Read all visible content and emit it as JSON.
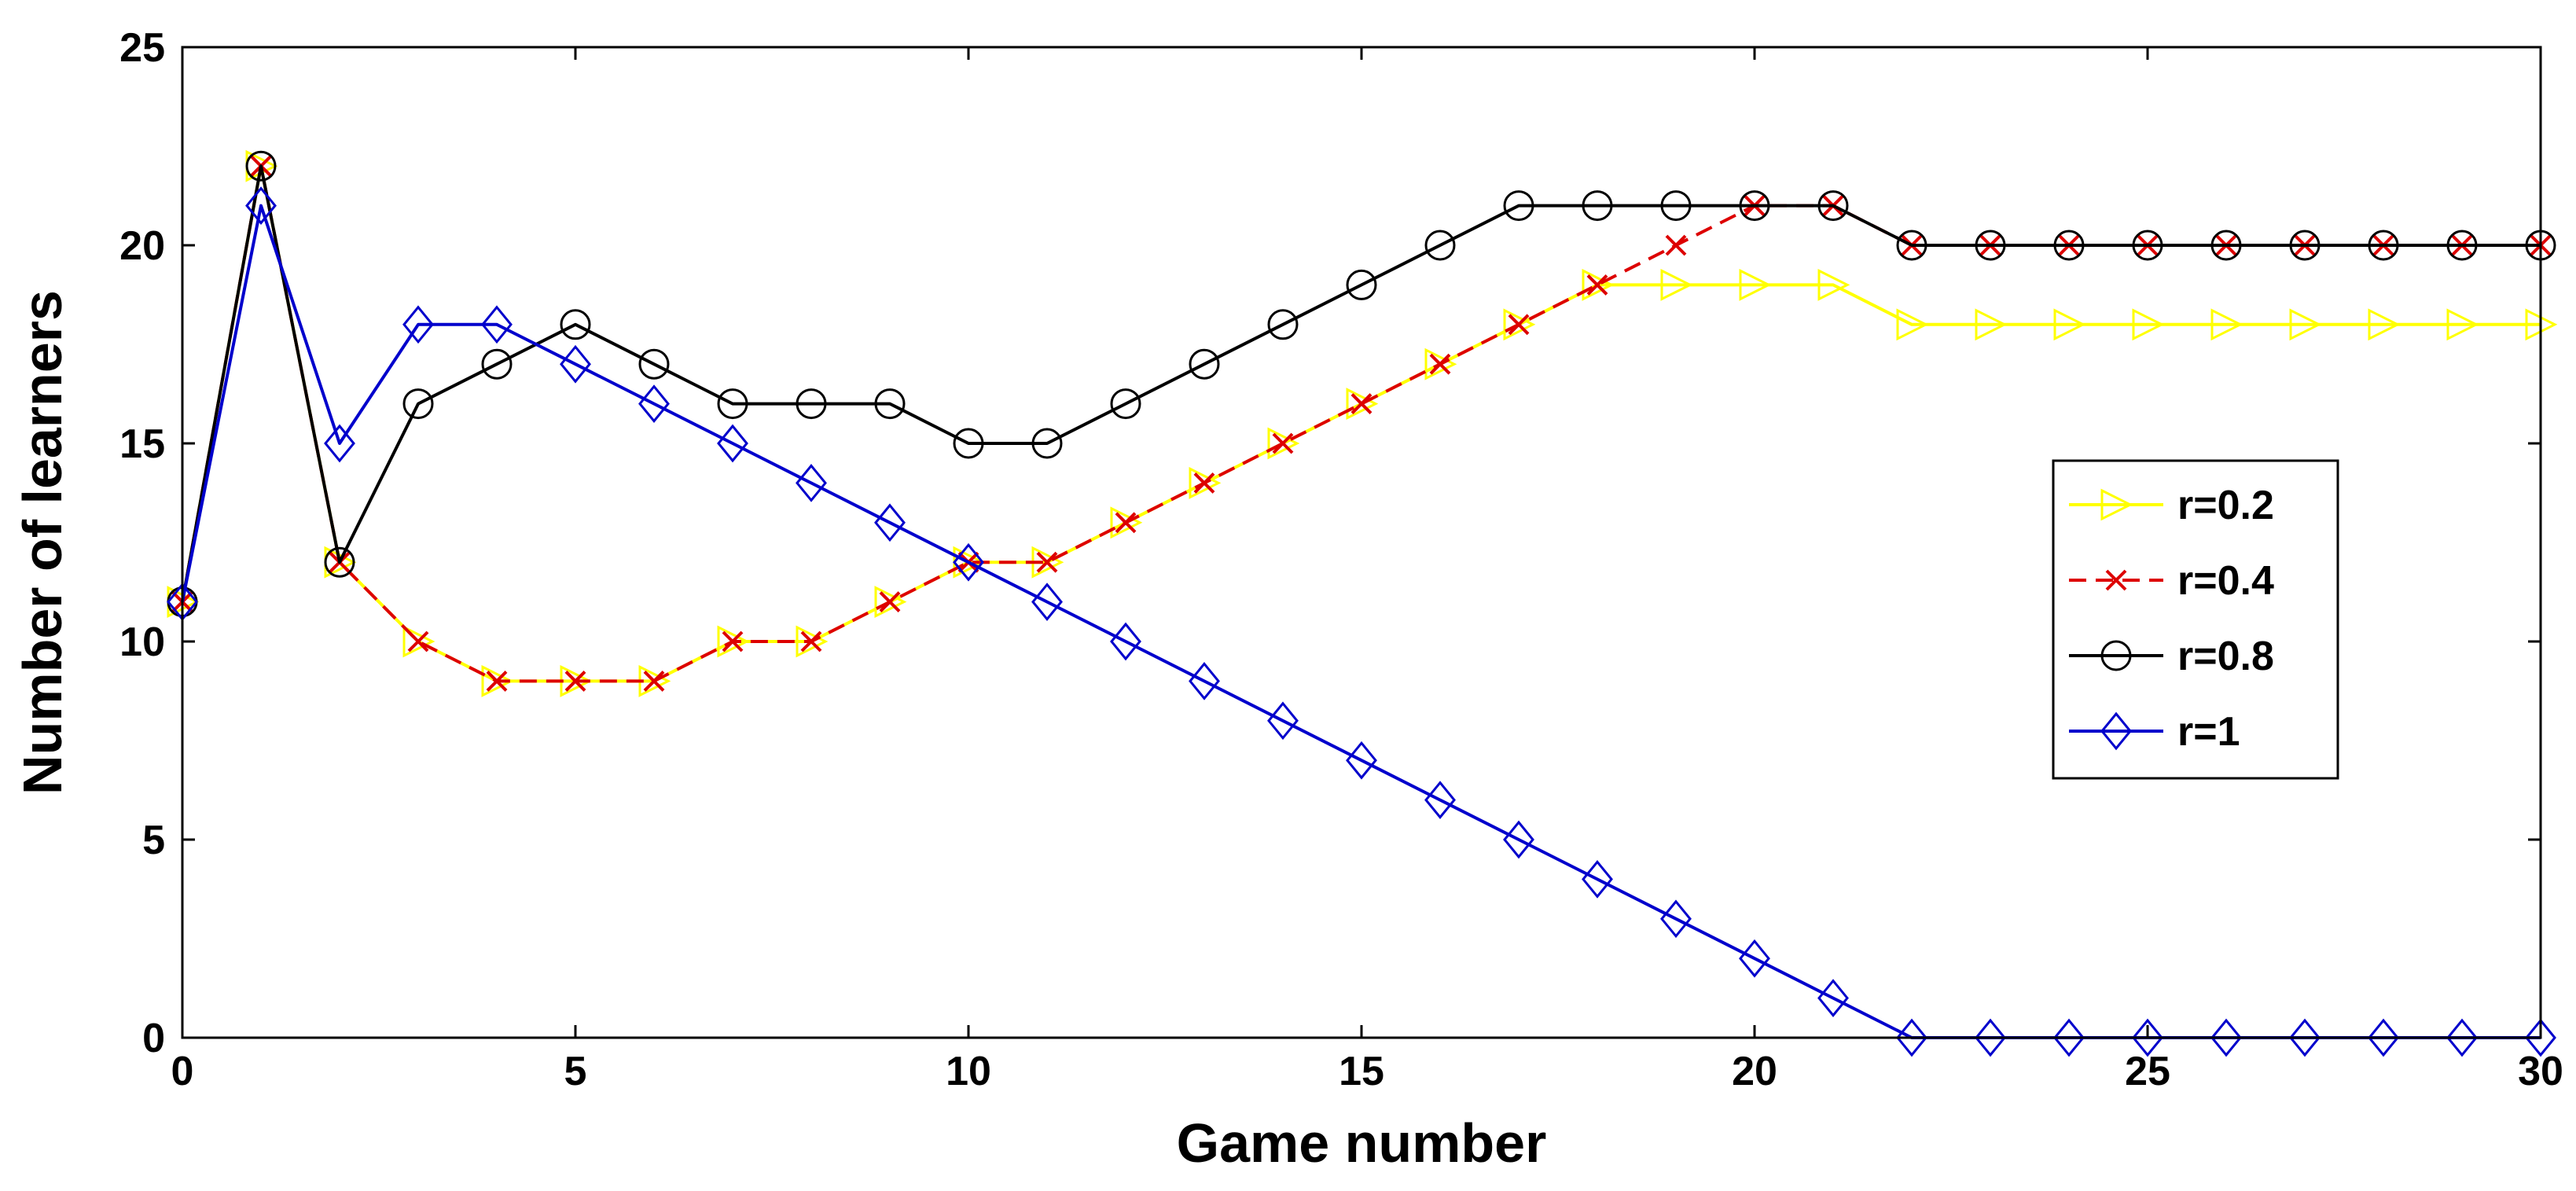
{
  "chart_data": {
    "type": "line",
    "title": "",
    "xlabel": "Game number",
    "ylabel": "Number of learners",
    "xlim": [
      0,
      30
    ],
    "ylim": [
      0,
      25
    ],
    "xticks": [
      0,
      5,
      10,
      15,
      20,
      25,
      30
    ],
    "yticks": [
      0,
      5,
      10,
      15,
      20,
      25
    ],
    "grid": false,
    "legend_position": "center-right",
    "x": [
      0,
      1,
      2,
      3,
      4,
      5,
      6,
      7,
      8,
      9,
      10,
      11,
      12,
      13,
      14,
      15,
      16,
      17,
      18,
      19,
      20,
      21,
      22,
      23,
      24,
      25,
      26,
      27,
      28,
      29,
      30
    ],
    "series": [
      {
        "name": "r=0.2",
        "color": "#ffff00",
        "line_style": "solid",
        "marker": "triangle-right",
        "values": [
          11,
          22,
          12,
          10,
          9,
          9,
          9,
          10,
          10,
          11,
          12,
          12,
          13,
          14,
          15,
          16,
          17,
          18,
          19,
          19,
          19,
          19,
          18,
          18,
          18,
          18,
          18,
          18,
          18,
          18,
          18
        ]
      },
      {
        "name": "r=0.4",
        "color": "#dd0000",
        "line_style": "dashed",
        "marker": "x",
        "values": [
          11,
          22,
          12,
          10,
          9,
          9,
          9,
          10,
          10,
          11,
          12,
          12,
          13,
          14,
          15,
          16,
          17,
          18,
          19,
          20,
          21,
          21,
          20,
          20,
          20,
          20,
          20,
          20,
          20,
          20,
          20
        ]
      },
      {
        "name": "r=0.8",
        "color": "#000000",
        "line_style": "solid",
        "marker": "circle",
        "values": [
          11,
          22,
          12,
          16,
          17,
          18,
          17,
          16,
          16,
          16,
          15,
          15,
          16,
          17,
          18,
          19,
          20,
          21,
          21,
          21,
          21,
          21,
          20,
          20,
          20,
          20,
          20,
          20,
          20,
          20,
          20
        ]
      },
      {
        "name": "r=1",
        "color": "#0000cc",
        "line_style": "solid",
        "marker": "diamond",
        "values": [
          11,
          21,
          15,
          18,
          18,
          17,
          16,
          15,
          14,
          13,
          12,
          11,
          10,
          9,
          8,
          7,
          6,
          5,
          4,
          3,
          2,
          1,
          0,
          0,
          0,
          0,
          0,
          0,
          0,
          0,
          0
        ]
      }
    ]
  }
}
